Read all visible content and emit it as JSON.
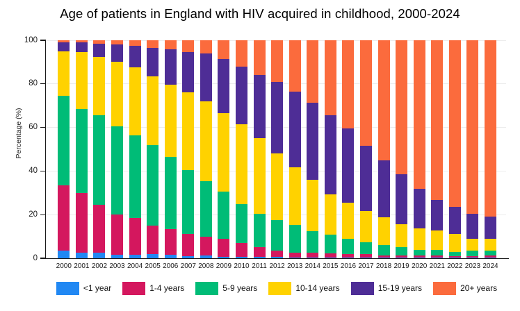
{
  "chart_data": {
    "type": "bar",
    "stacked": true,
    "title": "Age of patients in England with HIV acquired in childhood, 2000-2024",
    "xlabel": "",
    "ylabel": "Percentage (%)",
    "ylim": [
      0,
      100
    ],
    "yticks": [
      0,
      20,
      40,
      60,
      80,
      100
    ],
    "grid": "horizontal light gray",
    "legend_position": "bottom",
    "units": "percent",
    "categories": [
      "2000",
      "2001",
      "2002",
      "2003",
      "2004",
      "2005",
      "2006",
      "2007",
      "2008",
      "2009",
      "2010",
      "2011",
      "2012",
      "2013",
      "2014",
      "2015",
      "2016",
      "2017",
      "2018",
      "2019",
      "2020",
      "2021",
      "2022",
      "2023",
      "2024"
    ],
    "series": [
      {
        "name": "<1 year",
        "color": "#2188F3",
        "values": [
          3.5,
          2.5,
          2.5,
          1.5,
          1.5,
          2.0,
          1.5,
          1.0,
          1.2,
          0.8,
          0.5,
          0.5,
          0.5,
          0.4,
          0.4,
          0.4,
          0.4,
          0.4,
          0.3,
          0.3,
          0.3,
          0.3,
          0.2,
          0.2,
          0.3
        ]
      },
      {
        "name": "1-4 years",
        "color": "#D4175E",
        "values": [
          30,
          27.5,
          22,
          18.5,
          17,
          13,
          12,
          10,
          8.8,
          8.2,
          6.5,
          4.5,
          3.0,
          2.3,
          2.0,
          1.8,
          1.5,
          1.4,
          1.1,
          0.9,
          1.0,
          1.0,
          0.8,
          0.8,
          1.0
        ]
      },
      {
        "name": "5-9 years",
        "color": "#00BC77",
        "values": [
          41,
          38.5,
          41,
          40.5,
          38,
          37,
          33,
          29.5,
          25.5,
          21.5,
          18,
          15.5,
          14,
          12.5,
          10,
          8.5,
          7,
          5.5,
          4.5,
          4.0,
          2.5,
          2.4,
          2.0,
          2.4,
          2.2
        ]
      },
      {
        "name": "10-14 years",
        "color": "#FFD200",
        "values": [
          20.5,
          26,
          27,
          29.5,
          31,
          31.5,
          33,
          35.5,
          36.5,
          36,
          36.5,
          34.5,
          30.5,
          26.5,
          23.5,
          18.5,
          16.5,
          14.5,
          13,
          10.3,
          10,
          9,
          8,
          5.6,
          5.5
        ]
      },
      {
        "name": "15-19 years",
        "color": "#4E2D96",
        "values": [
          4,
          4.5,
          6,
          8,
          10,
          13,
          16.5,
          18.5,
          22,
          25,
          26.5,
          29,
          33,
          34.8,
          35.5,
          36.3,
          34,
          29.7,
          26.1,
          23,
          18,
          14,
          12.5,
          11.5,
          10
        ]
      },
      {
        "name": "20+ years",
        "color": "#FB6B3D",
        "values": [
          1,
          1,
          1.5,
          2,
          2.5,
          3.5,
          4,
          5.5,
          6,
          8.5,
          12,
          16,
          19,
          23.5,
          28.6,
          34.5,
          40.6,
          48.5,
          55,
          61.5,
          68.2,
          73.3,
          76.5,
          79.5,
          81
        ]
      }
    ]
  }
}
